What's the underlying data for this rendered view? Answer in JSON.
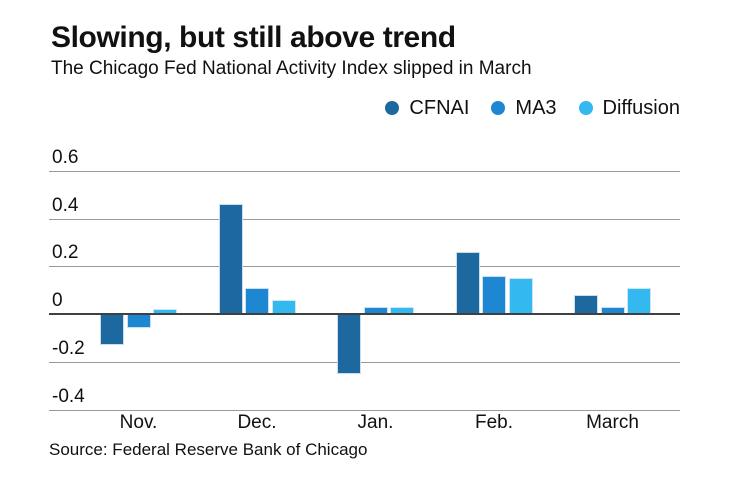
{
  "header": {
    "title": "Slowing, but still above trend",
    "subtitle": "The Chicago Fed National Activity Index slipped in March"
  },
  "legend": {
    "items": [
      {
        "label": "CFNAI",
        "color": "#1d689e"
      },
      {
        "label": "MA3",
        "color": "#1e87d2"
      },
      {
        "label": "Diffusion",
        "color": "#33b8f0"
      }
    ]
  },
  "footer": {
    "source": "Source: Federal Reserve Bank of Chicago"
  },
  "colors": {
    "background": "#ffffff",
    "gridline": "#9a9a9a",
    "zero_line": "#404040",
    "text": "#111111",
    "cfnai": "#1d689e",
    "ma3": "#1e87d2",
    "diffusion": "#33b8f0"
  },
  "chart_data": {
    "type": "bar",
    "title": "Slowing, but still above trend",
    "subtitle": "The Chicago Fed National Activity Index slipped in March",
    "source": "Source: Federal Reserve Bank of Chicago",
    "categories": [
      "Nov.",
      "Dec.",
      "Jan.",
      "Feb.",
      "March"
    ],
    "series": [
      {
        "name": "CFNAI",
        "color": "#1d689e",
        "values": [
          -0.13,
          0.46,
          -0.25,
          0.26,
          0.08
        ]
      },
      {
        "name": "MA3",
        "color": "#1e87d2",
        "values": [
          -0.06,
          0.11,
          0.03,
          0.16,
          0.03
        ]
      },
      {
        "name": "Diffusion",
        "color": "#33b8f0",
        "values": [
          0.02,
          0.06,
          0.03,
          0.15,
          0.11
        ]
      }
    ],
    "ylim": [
      -0.4,
      0.6
    ],
    "yticks": [
      {
        "label": "0.6",
        "value": 0.6
      },
      {
        "label": "0.4",
        "value": 0.4
      },
      {
        "label": "0.2",
        "value": 0.2
      },
      {
        "label": "0",
        "value": 0
      },
      {
        "label": "-0.2",
        "value": -0.2
      },
      {
        "label": "-0.4",
        "value": -0.4
      }
    ],
    "grid": true,
    "legend_position": "top-right",
    "xlabel": "",
    "ylabel": ""
  }
}
